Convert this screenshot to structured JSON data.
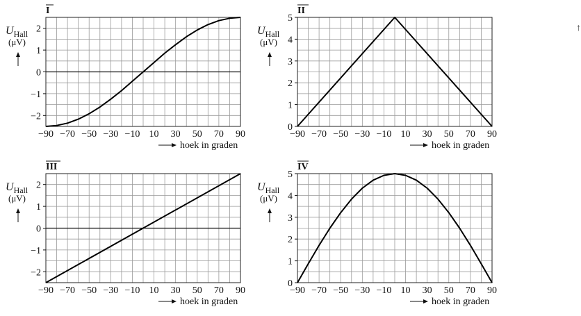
{
  "edge_mark": "↑",
  "chart_data": [
    {
      "id": "I",
      "type": "line",
      "title": "I",
      "ylabel": "U",
      "ylabel_sub": "Hall",
      "yunit": "(μV)",
      "xlabel": "hoek in graden",
      "xlim": [
        -90,
        90
      ],
      "ylim": [
        -2.5,
        2.5
      ],
      "xticks": [
        -90,
        -70,
        -50,
        -30,
        -10,
        10,
        30,
        50,
        70,
        90
      ],
      "yticks": [
        -2,
        -1,
        0,
        1,
        2
      ],
      "ytick_labels": [
        "−2",
        "−1",
        "0",
        "1",
        "2"
      ],
      "xtick_labels": [
        "−90",
        "−70",
        "−50",
        "−30",
        "−10",
        "10",
        "30",
        "50",
        "70",
        "90"
      ],
      "series": [
        {
          "name": "U_Hall",
          "x": [
            -90,
            -80,
            -70,
            -60,
            -50,
            -40,
            -30,
            -20,
            -10,
            0,
            10,
            20,
            30,
            40,
            50,
            60,
            70,
            80,
            90
          ],
          "y": [
            -2.5,
            -2.46,
            -2.35,
            -2.17,
            -1.92,
            -1.61,
            -1.25,
            -0.86,
            -0.43,
            0,
            0.43,
            0.86,
            1.25,
            1.61,
            1.92,
            2.17,
            2.35,
            2.46,
            2.5
          ]
        }
      ],
      "zero_line": true
    },
    {
      "id": "II",
      "type": "line",
      "title": "II",
      "ylabel": "U",
      "ylabel_sub": "Hall",
      "yunit": "(μV)",
      "xlabel": "hoek in graden",
      "xlim": [
        -90,
        90
      ],
      "ylim": [
        0,
        5
      ],
      "xticks": [
        -90,
        -70,
        -50,
        -30,
        -10,
        10,
        30,
        50,
        70,
        90
      ],
      "yticks": [
        0,
        1,
        2,
        3,
        4,
        5
      ],
      "ytick_labels": [
        "0",
        "1",
        "2",
        "3",
        "4",
        "5"
      ],
      "xtick_labels": [
        "−90",
        "−70",
        "−50",
        "−30",
        "−10",
        "10",
        "30",
        "50",
        "70",
        "90"
      ],
      "series": [
        {
          "name": "U_Hall",
          "x": [
            -90,
            0,
            90
          ],
          "y": [
            0,
            5,
            0
          ]
        }
      ],
      "zero_line": false
    },
    {
      "id": "III",
      "type": "line",
      "title": "III",
      "ylabel": "U",
      "ylabel_sub": "Hall",
      "yunit": "(μV)",
      "xlabel": "hoek in graden",
      "xlim": [
        -90,
        90
      ],
      "ylim": [
        -2.5,
        2.5
      ],
      "xticks": [
        -90,
        -70,
        -50,
        -30,
        -10,
        10,
        30,
        50,
        70,
        90
      ],
      "yticks": [
        -2,
        -1,
        0,
        1,
        2
      ],
      "ytick_labels": [
        "−2",
        "−1",
        "0",
        "1",
        "2"
      ],
      "xtick_labels": [
        "−90",
        "−70",
        "−50",
        "−30",
        "−10",
        "10",
        "30",
        "50",
        "70",
        "90"
      ],
      "series": [
        {
          "name": "U_Hall",
          "x": [
            -90,
            90
          ],
          "y": [
            -2.5,
            2.5
          ]
        }
      ],
      "zero_line": true
    },
    {
      "id": "IV",
      "type": "line",
      "title": "IV",
      "ylabel": "U",
      "ylabel_sub": "Hall",
      "yunit": "(μV)",
      "xlabel": "hoek in graden",
      "xlim": [
        -90,
        90
      ],
      "ylim": [
        0,
        5
      ],
      "xticks": [
        -90,
        -70,
        -50,
        -30,
        -10,
        10,
        30,
        50,
        70,
        90
      ],
      "yticks": [
        0,
        1,
        2,
        3,
        4,
        5
      ],
      "ytick_labels": [
        "0",
        "1",
        "2",
        "3",
        "4",
        "5"
      ],
      "xtick_labels": [
        "−90",
        "−70",
        "−50",
        "−30",
        "−10",
        "10",
        "30",
        "50",
        "70",
        "90"
      ],
      "series": [
        {
          "name": "U_Hall",
          "x": [
            -90,
            -80,
            -70,
            -60,
            -50,
            -40,
            -30,
            -20,
            -10,
            0,
            10,
            20,
            30,
            40,
            50,
            60,
            70,
            80,
            90
          ],
          "y": [
            0,
            0.87,
            1.71,
            2.5,
            3.21,
            3.83,
            4.33,
            4.7,
            4.92,
            5,
            4.92,
            4.7,
            4.33,
            3.83,
            3.21,
            2.5,
            1.71,
            0.87,
            0
          ]
        }
      ],
      "zero_line": false
    }
  ]
}
